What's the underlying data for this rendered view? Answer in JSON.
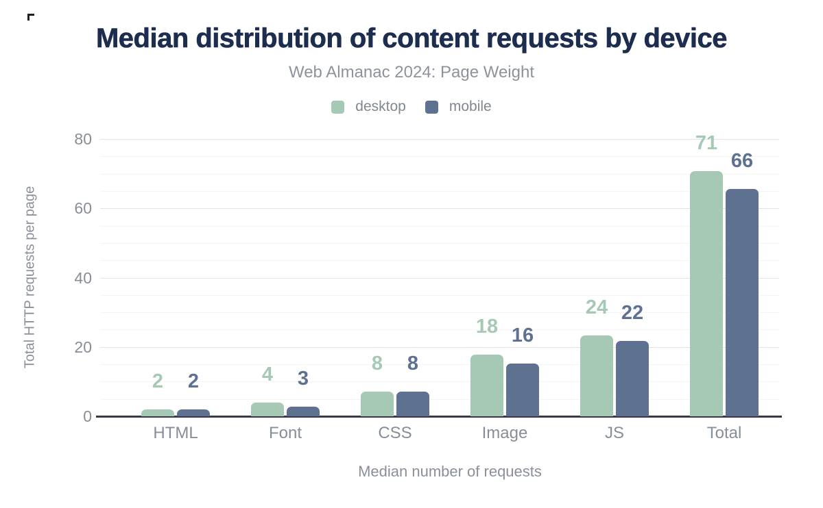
{
  "chart_data": {
    "type": "bar",
    "title": "Median distribution of content requests by device",
    "subtitle": "Web Almanac 2024: Page Weight",
    "xlabel": "Median number of requests",
    "ylabel": "Total HTTP requests per page",
    "categories": [
      "HTML",
      "Font",
      "CSS",
      "Image",
      "JS",
      "Total"
    ],
    "series": [
      {
        "name": "desktop",
        "color": "#a6c9b6",
        "values": [
          2,
          4,
          8,
          18,
          24,
          71
        ],
        "rendered_bar_values": [
          2,
          4,
          7.2,
          17.8,
          23.4,
          70.8
        ]
      },
      {
        "name": "mobile",
        "color": "#5e7190",
        "values": [
          2,
          3,
          8,
          16,
          22,
          66
        ],
        "rendered_bar_values": [
          2,
          2.8,
          7.2,
          15.3,
          21.7,
          65.6
        ]
      }
    ],
    "ylim": [
      0,
      80
    ],
    "yticks": [
      0,
      20,
      40,
      60,
      80
    ],
    "minor_grid_step": 5,
    "grid": true,
    "legend_position": "top"
  },
  "colors": {
    "title": "#1d2d50",
    "subtitle": "#8d939b",
    "axis_text": "#878e98",
    "axis_line": "#343b45",
    "grid_major": "#e4e4e4",
    "grid_minor": "#f4f4f4",
    "background": "#ffffff"
  }
}
